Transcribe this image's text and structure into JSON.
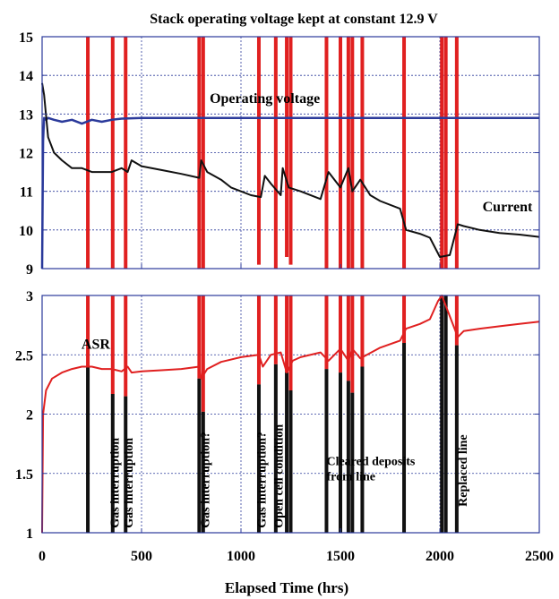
{
  "chart_data": {
    "type": "line",
    "title": "Stack operating voltage kept at constant 12.9 V",
    "xlabel": "Elapsed Time (hrs)",
    "xlim": [
      0,
      2500
    ],
    "xticks": [
      "0",
      "500",
      "1000",
      "1500",
      "2000",
      "2500"
    ],
    "grid": true,
    "colors": {
      "voltage": "#2b3a9b",
      "current": "#111111",
      "asr": "#e02020",
      "event_line_top": "#e02020",
      "event_line_bottom": "#111111",
      "frame": "#2b3a9b"
    },
    "panels": [
      {
        "id": "top",
        "ylim": [
          9,
          15
        ],
        "yticks": [
          "9",
          "10",
          "11",
          "12",
          "13",
          "14",
          "15"
        ],
        "annotations": [
          {
            "text": "Operating voltage",
            "x": 1120,
            "y": 13.28
          },
          {
            "text": "Current",
            "x": 2340,
            "y": 10.48
          }
        ],
        "series": [
          {
            "key": "voltage",
            "color": "#2b3a9b",
            "x": [
              0,
              5,
              10,
              20,
              30,
              60,
              100,
              150,
              200,
              250,
              300,
              350,
              400,
              500,
              800,
              1000,
              1200,
              1500,
              1800,
              2000,
              2100,
              2500
            ],
            "y": [
              9.0,
              12.3,
              12.9,
              12.85,
              12.9,
              12.85,
              12.8,
              12.85,
              12.75,
              12.85,
              12.8,
              12.85,
              12.88,
              12.9,
              12.9,
              12.9,
              12.9,
              12.9,
              12.9,
              12.9,
              12.9,
              12.9
            ]
          },
          {
            "key": "current",
            "color": "#111111",
            "x": [
              0,
              10,
              30,
              60,
              100,
              150,
              200,
              250,
              300,
              350,
              400,
              430,
              450,
              500,
              600,
              700,
              790,
              800,
              830,
              900,
              950,
              1000,
              1050,
              1100,
              1120,
              1150,
              1200,
              1210,
              1240,
              1300,
              1400,
              1440,
              1500,
              1540,
              1560,
              1600,
              1650,
              1700,
              1800,
              1830,
              1900,
              1950,
              2000,
              2050,
              2090,
              2120,
              2200,
              2300,
              2400,
              2500
            ],
            "y": [
              13.8,
              13.5,
              12.4,
              12.0,
              11.8,
              11.6,
              11.6,
              11.5,
              11.5,
              11.5,
              11.6,
              11.5,
              11.8,
              11.65,
              11.55,
              11.45,
              11.35,
              11.8,
              11.5,
              11.3,
              11.1,
              11.0,
              10.9,
              10.85,
              11.4,
              11.2,
              10.9,
              11.6,
              11.1,
              11.0,
              10.8,
              11.5,
              11.1,
              11.6,
              11.0,
              11.3,
              10.9,
              10.75,
              10.55,
              10.0,
              9.9,
              9.8,
              9.3,
              9.35,
              10.15,
              10.1,
              10.0,
              9.92,
              9.88,
              9.82
            ]
          }
        ],
        "event_lines": [
          {
            "x": 230,
            "y0": 9.0
          },
          {
            "x": 355,
            "y0": 9.0
          },
          {
            "x": 420,
            "y0": 9.0
          },
          {
            "x": 790,
            "y0": 9.0
          },
          {
            "x": 810,
            "y0": 9.0
          },
          {
            "x": 1090,
            "y0": 9.1
          },
          {
            "x": 1175,
            "y0": 9.0
          },
          {
            "x": 1230,
            "y0": 9.3
          },
          {
            "x": 1250,
            "y0": 9.1
          },
          {
            "x": 1430,
            "y0": 9.0
          },
          {
            "x": 1500,
            "y0": 9.0
          },
          {
            "x": 1540,
            "y0": 9.0
          },
          {
            "x": 1560,
            "y0": 9.0
          },
          {
            "x": 1610,
            "y0": 9.0
          },
          {
            "x": 1820,
            "y0": 9.0
          },
          {
            "x": 2010,
            "y0": 9.0
          },
          {
            "x": 2030,
            "y0": 9.0
          },
          {
            "x": 2085,
            "y0": 9.0
          }
        ]
      },
      {
        "id": "bottom",
        "ylim": [
          1,
          3
        ],
        "yticks": [
          "1",
          "1.5",
          "2",
          "2.5",
          "3"
        ],
        "annotations": [
          {
            "text": "ASR",
            "x": 270,
            "y": 2.55
          }
        ],
        "series": [
          {
            "key": "asr",
            "color": "#e02020",
            "x": [
              0,
              5,
              20,
              50,
              100,
              150,
              200,
              250,
              300,
              350,
              400,
              430,
              450,
              500,
              600,
              700,
              790,
              800,
              830,
              900,
              1000,
              1090,
              1110,
              1150,
              1200,
              1230,
              1260,
              1300,
              1400,
              1440,
              1500,
              1540,
              1560,
              1600,
              1700,
              1800,
              1830,
              1900,
              1950,
              1990,
              2010,
              2090,
              2120,
              2200,
              2300,
              2400,
              2500
            ],
            "y": [
              1.0,
              2.0,
              2.2,
              2.3,
              2.35,
              2.38,
              2.4,
              2.4,
              2.38,
              2.38,
              2.36,
              2.4,
              2.35,
              2.36,
              2.37,
              2.38,
              2.4,
              2.3,
              2.38,
              2.44,
              2.48,
              2.5,
              2.4,
              2.5,
              2.52,
              2.35,
              2.45,
              2.48,
              2.52,
              2.45,
              2.55,
              2.45,
              2.55,
              2.47,
              2.56,
              2.62,
              2.72,
              2.76,
              2.8,
              2.95,
              3.0,
              2.65,
              2.7,
              2.72,
              2.74,
              2.76,
              2.78
            ]
          }
        ],
        "event_lines": [
          {
            "x": 230,
            "y_top": 3.0,
            "y_split": 2.4
          },
          {
            "x": 355,
            "y_top": 3.0,
            "y_split": 2.17
          },
          {
            "x": 420,
            "y_top": 3.0,
            "y_split": 2.15
          },
          {
            "x": 790,
            "y_top": 3.0,
            "y_split": 2.3
          },
          {
            "x": 810,
            "y_top": 3.0,
            "y_split": 2.02
          },
          {
            "x": 1090,
            "y_top": 3.0,
            "y_split": 2.25
          },
          {
            "x": 1175,
            "y_top": 3.0,
            "y_split": 2.42
          },
          {
            "x": 1230,
            "y_top": 3.0,
            "y_split": 2.35
          },
          {
            "x": 1250,
            "y_top": 3.0,
            "y_split": 2.2
          },
          {
            "x": 1430,
            "y_top": 3.0,
            "y_split": 2.38
          },
          {
            "x": 1500,
            "y_top": 3.0,
            "y_split": 2.35
          },
          {
            "x": 1540,
            "y_top": 3.0,
            "y_split": 2.28
          },
          {
            "x": 1560,
            "y_top": 3.0,
            "y_split": 2.18
          },
          {
            "x": 1610,
            "y_top": 3.0,
            "y_split": 2.4
          },
          {
            "x": 1820,
            "y_top": 3.0,
            "y_split": 2.6
          },
          {
            "x": 2010,
            "y_top": 3.0,
            "y_split": 3.0
          },
          {
            "x": 2030,
            "y_top": 3.0,
            "y_split": 3.0
          },
          {
            "x": 2085,
            "y_top": 3.0,
            "y_split": 2.58
          }
        ],
        "labels": [
          {
            "text": "Gas interruption",
            "x": 385,
            "y": 1.04
          },
          {
            "text": "Gas interruption",
            "x": 455,
            "y": 1.04
          },
          {
            "text": "Gas interruption?",
            "x": 840,
            "y": 1.04
          },
          {
            "text": "Gas interruption?",
            "x": 1125,
            "y": 1.04
          },
          {
            "text": "Open cell condition",
            "x": 1210,
            "y": 1.04
          }
        ],
        "horizontal_labels": [
          {
            "text": "Cleared deposits",
            "x": 1430,
            "y": 1.57
          },
          {
            "text": "from line",
            "x": 1430,
            "y": 1.44
          }
        ],
        "vertical_labels_right": [
          {
            "text": "Replaced line",
            "x": 2135,
            "y": 1.22
          }
        ]
      }
    ]
  }
}
